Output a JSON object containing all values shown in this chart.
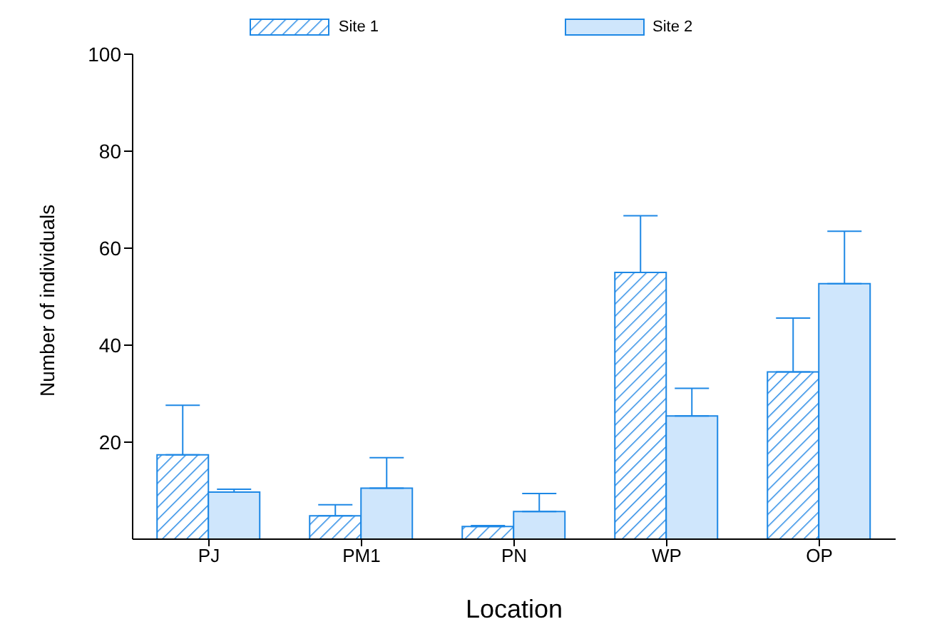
{
  "chart_data": {
    "type": "bar",
    "xlabel": "Location",
    "ylabel": "Number of individuals",
    "categories": [
      "PJ",
      "PM1",
      "PN",
      "WP",
      "OP"
    ],
    "series": [
      {
        "name": "Site 1",
        "color": "#2b8ce6",
        "values": [
          17.4,
          4.8,
          2.6,
          55.0,
          34.5
        ],
        "errors": [
          [
            17.4,
            27.6
          ],
          [
            4.8,
            7.1
          ],
          [
            2.6,
            2.8
          ],
          [
            55.0,
            66.7
          ],
          [
            34.5,
            45.6
          ]
        ]
      },
      {
        "name": "Site 2",
        "color": "#cfe6fc",
        "values": [
          9.7,
          10.5,
          5.7,
          25.4,
          52.7
        ],
        "errors": [
          [
            9.7,
            10.3
          ],
          [
            10.5,
            16.8
          ],
          [
            5.7,
            9.4
          ],
          [
            25.4,
            31.1
          ],
          [
            52.7,
            63.5
          ]
        ]
      }
    ],
    "ylim": [
      0,
      100
    ],
    "yticks": [
      20,
      40,
      60,
      80,
      100
    ],
    "legend": "top",
    "grid": false
  }
}
